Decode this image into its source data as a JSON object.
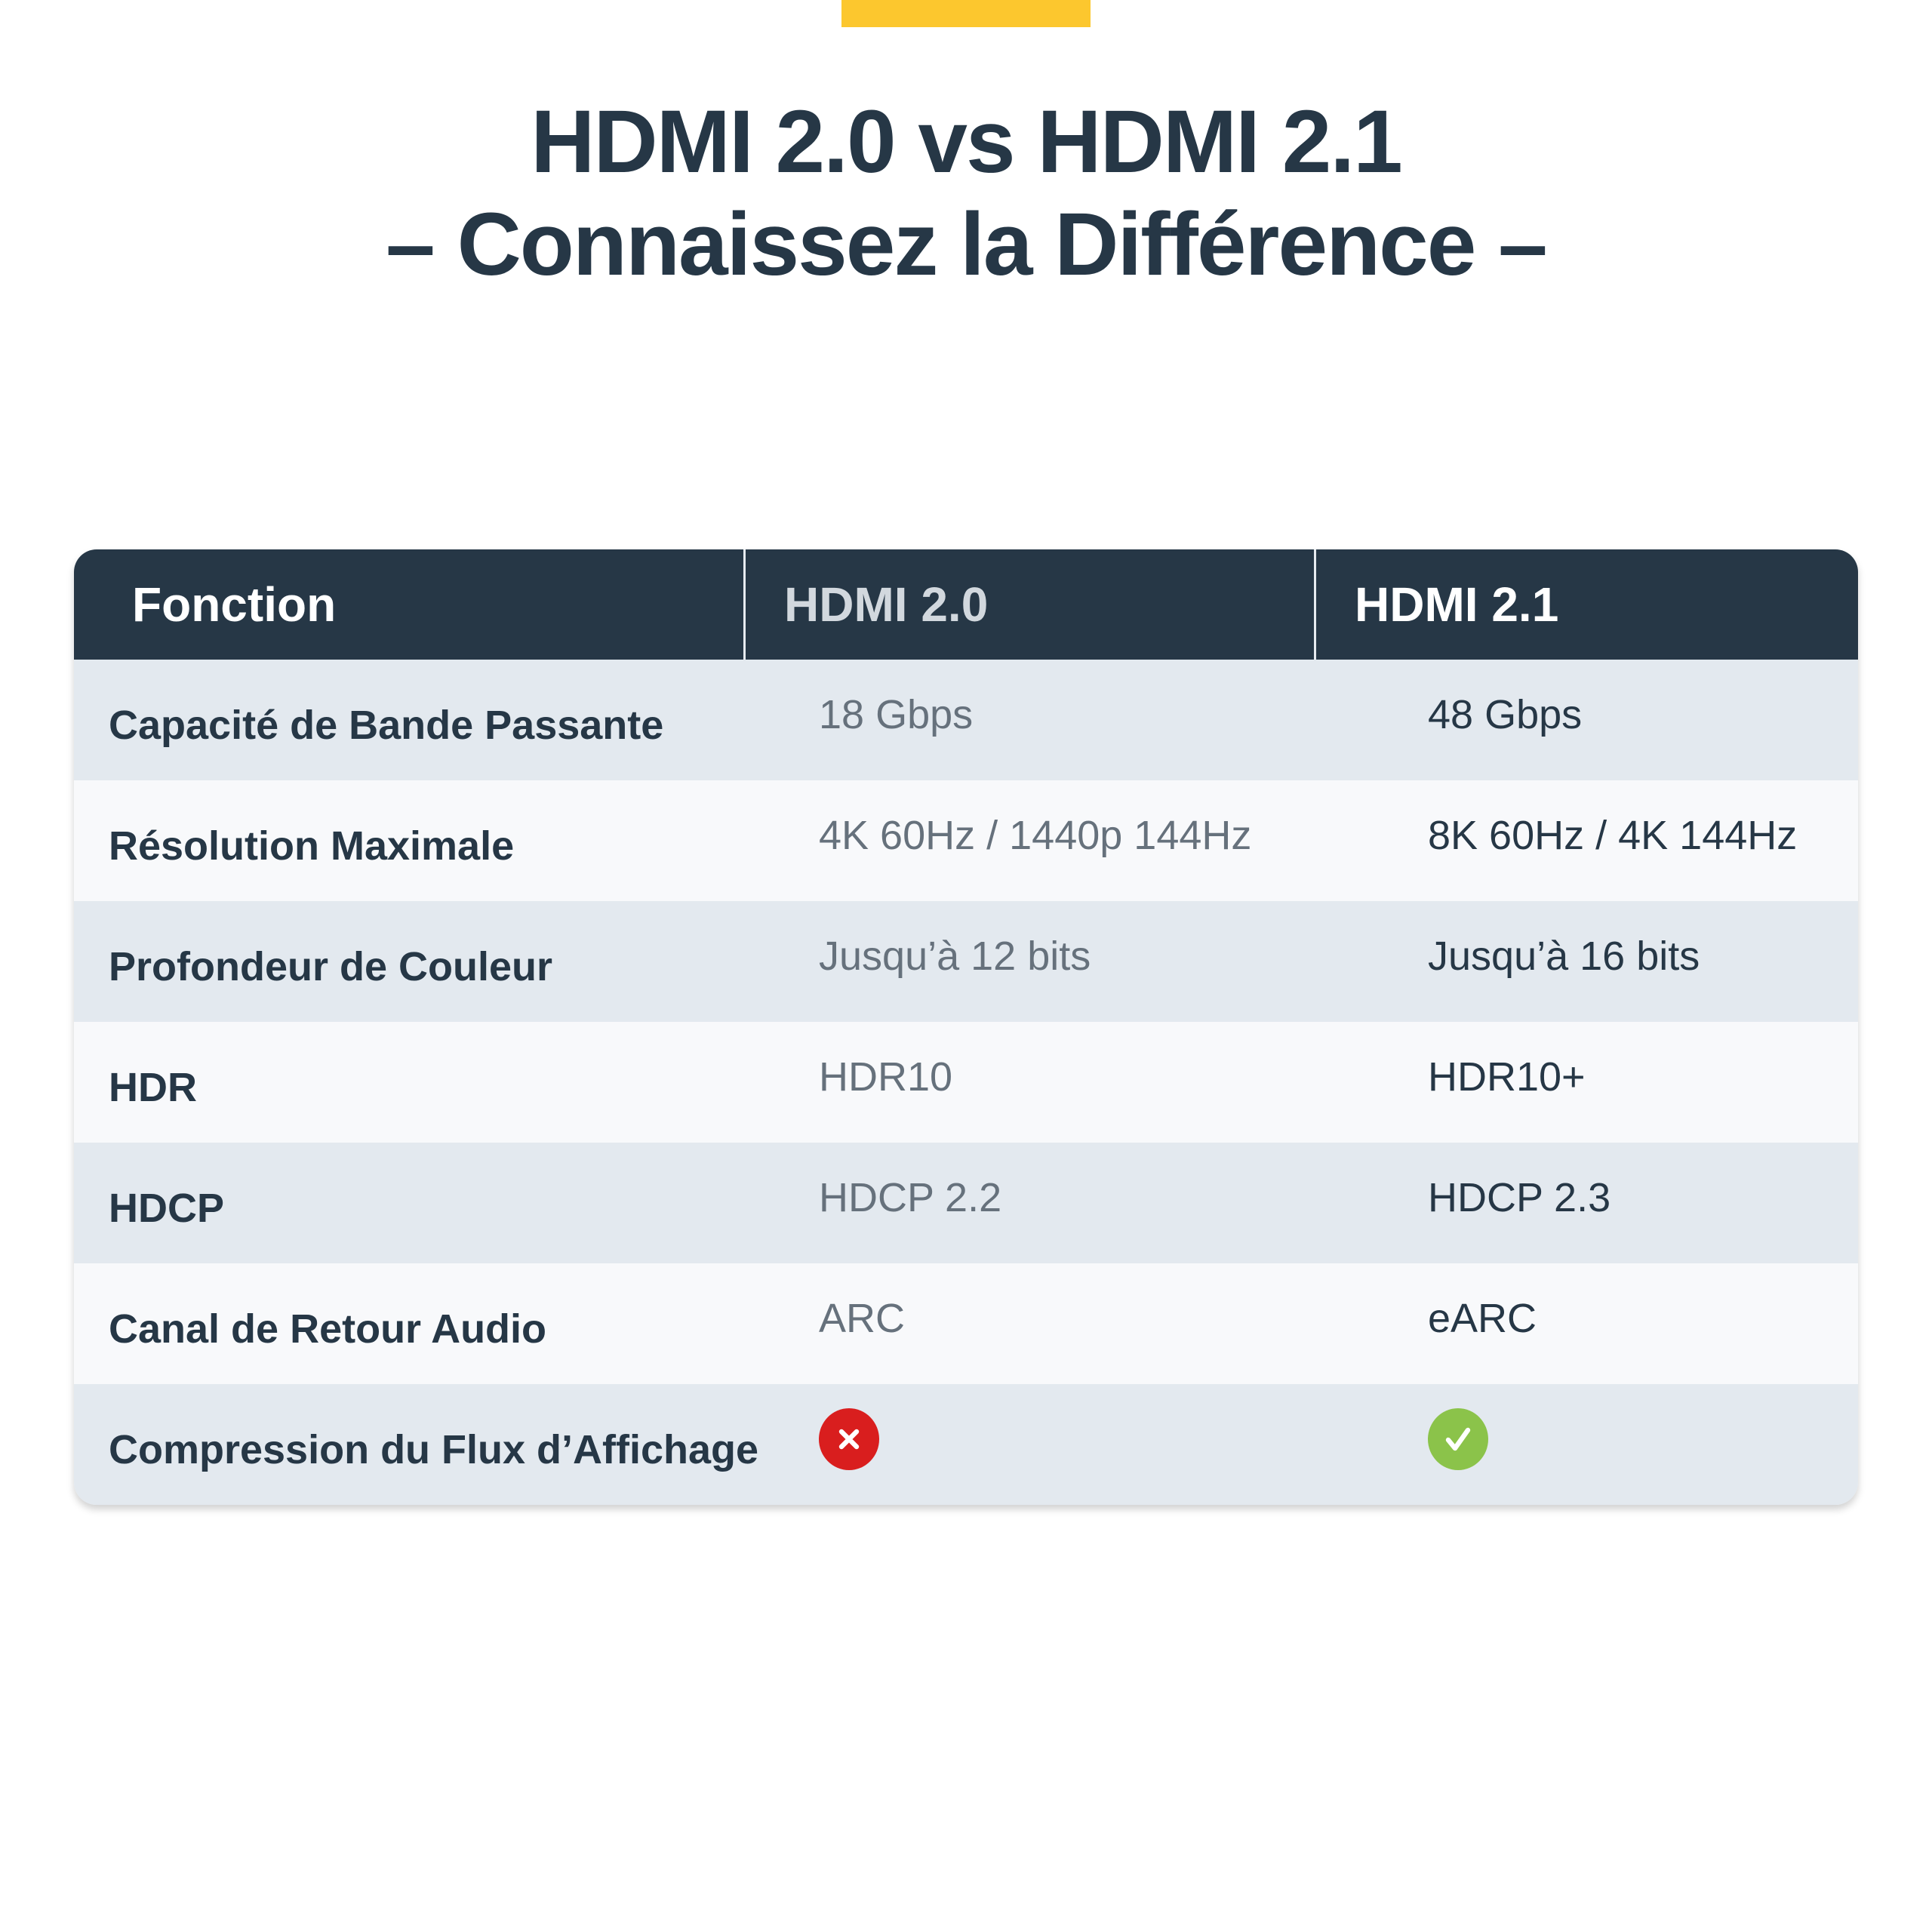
{
  "title": {
    "line1": "HDMI 2.0 vs HDMI 2.1",
    "line2": "– Connaissez la Différence –"
  },
  "colors": {
    "accent": "#fcc72e",
    "header_bg": "#263746",
    "no": "#d91e1e",
    "yes": "#8bc34a"
  },
  "table": {
    "headers": [
      "Fonction",
      "HDMI 2.0",
      "HDMI 2.1"
    ],
    "rows": [
      {
        "feature": "Capacité de Bande Passante",
        "hdmi20": "18 Gbps",
        "hdmi21": "48 Gbps"
      },
      {
        "feature": "Résolution Maximale",
        "hdmi20": "4K 60Hz / 1440p 144Hz",
        "hdmi21": "8K 60Hz / 4K 144Hz"
      },
      {
        "feature": "Profondeur de Couleur",
        "hdmi20": "Jusqu’à 12 bits",
        "hdmi21": "Jusqu’à 16 bits"
      },
      {
        "feature": "HDR",
        "hdmi20": "HDR10",
        "hdmi21": "HDR10+"
      },
      {
        "feature": "HDCP",
        "hdmi20": "HDCP 2.2",
        "hdmi21": "HDCP 2.3"
      },
      {
        "feature": "Canal de Retour Audio",
        "hdmi20": "ARC",
        "hdmi21": "eARC"
      },
      {
        "feature": "Compression du Flux d’Affichage",
        "hdmi20_icon": "x-circle-icon",
        "hdmi21_icon": "check-circle-icon"
      }
    ]
  }
}
